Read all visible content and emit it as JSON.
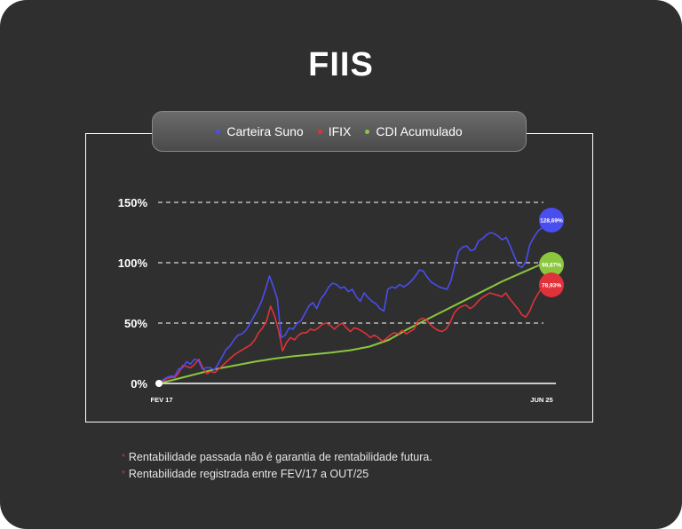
{
  "page": {
    "title": "FIIS"
  },
  "legend": {
    "items": [
      {
        "label": "Carteira Suno",
        "color": "#4a4df0"
      },
      {
        "label": "IFIX",
        "color": "#e0323a"
      },
      {
        "label": "CDI Acumulado",
        "color": "#8cc63f"
      }
    ]
  },
  "chart_data": {
    "type": "line",
    "x_tick_labels": [
      "FEV 17",
      "JUN 25"
    ],
    "y_ticks": [
      0,
      50,
      100,
      150
    ],
    "y_tick_labels": [
      "0%",
      "50%",
      "100%",
      "150%"
    ],
    "ylim": [
      0,
      150
    ],
    "grid": "dashed horizontal",
    "series": [
      {
        "name": "Carteira Suno",
        "color": "#4a4df0",
        "end_label": "128,69%",
        "values": [
          0,
          3,
          5,
          6,
          6,
          12,
          13,
          18,
          16,
          20,
          19,
          12,
          13,
          13,
          11,
          16,
          22,
          28,
          31,
          36,
          40,
          41,
          44,
          49,
          55,
          61,
          68,
          78,
          89,
          80,
          70,
          38,
          40,
          46,
          45,
          50,
          52,
          58,
          64,
          67,
          62,
          70,
          74,
          80,
          83,
          82,
          79,
          80,
          76,
          78,
          72,
          68,
          75,
          71,
          68,
          66,
          62,
          60,
          78,
          80,
          79,
          82,
          80,
          82,
          85,
          89,
          94,
          93,
          88,
          84,
          82,
          80,
          79,
          78,
          85,
          98,
          110,
          113,
          114,
          110,
          111,
          118,
          120,
          123,
          125,
          124,
          122,
          119,
          121,
          114,
          106,
          98,
          96,
          101,
          115,
          121,
          126,
          128.69
        ]
      },
      {
        "name": "IFIX",
        "color": "#e0323a",
        "end_label": "78,93%",
        "values": [
          0,
          2,
          4,
          5,
          5,
          9,
          15,
          14,
          13,
          16,
          20,
          13,
          8,
          10,
          9,
          12,
          15,
          18,
          21,
          24,
          26,
          28,
          30,
          32,
          36,
          42,
          46,
          52,
          64,
          56,
          44,
          27,
          34,
          38,
          36,
          40,
          42,
          42,
          45,
          44,
          46,
          49,
          50,
          48,
          45,
          48,
          50,
          46,
          43,
          46,
          45,
          43,
          41,
          38,
          40,
          38,
          35,
          37,
          40,
          42,
          41,
          44,
          41,
          43,
          45,
          52,
          54,
          53,
          49,
          46,
          44,
          43,
          45,
          50,
          58,
          62,
          64,
          65,
          62,
          64,
          68,
          71,
          73,
          75,
          74,
          73,
          72,
          75,
          70,
          66,
          62,
          57,
          55,
          60,
          68,
          74,
          78.93
        ]
      },
      {
        "name": "CDI Acumulado",
        "color": "#8cc63f",
        "end_label": "98,87%",
        "x": [
          0,
          0.05,
          0.1,
          0.15,
          0.2,
          0.25,
          0.3,
          0.35,
          0.4,
          0.45,
          0.5,
          0.55,
          0.6,
          0.65,
          0.7,
          0.75,
          0.8,
          0.85,
          0.9,
          0.95,
          1.0
        ],
        "values": [
          0,
          4,
          8,
          12,
          15,
          18,
          20.5,
          22.5,
          24,
          25.5,
          27.5,
          30.5,
          36,
          45,
          53,
          61,
          69,
          77,
          85,
          92,
          98.87
        ]
      }
    ]
  },
  "notes": [
    "Rentabilidade passada não é garantia de rentabilidade futura.",
    "Rentabilidade registrada entre FEV/17 a OUT/25"
  ]
}
